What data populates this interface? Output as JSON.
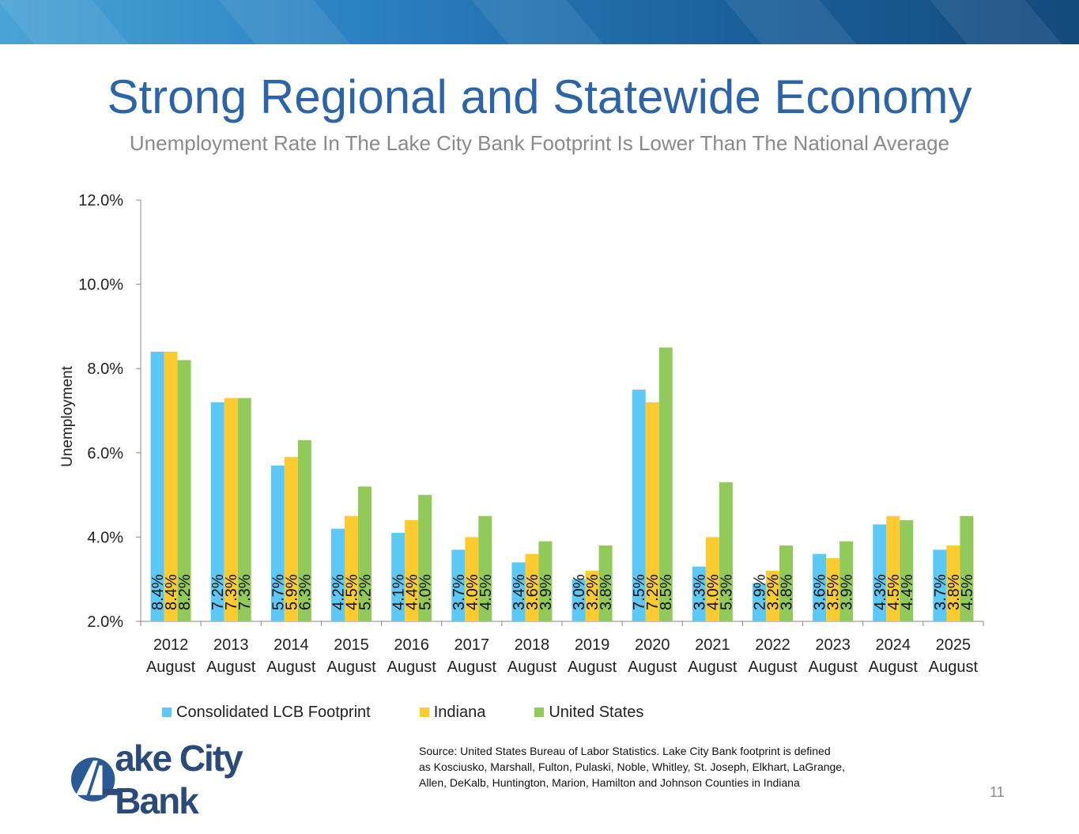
{
  "slide": {
    "title": "Strong Regional and Statewide Economy",
    "subtitle": "Unemployment Rate In The Lake City Bank Footprint Is Lower Than The National Average",
    "source_lines": [
      "Source: United States Bureau of Labor Statistics.  Lake City Bank footprint is defined",
      "as Kosciusko, Marshall, Fulton, Pulaski, Noble, Whitley, St. Joseph, Elkhart, LaGrange,",
      "Allen, DeKalb, Huntington, Marion, Hamilton and Johnson Counties in Indiana"
    ],
    "logo_text": "ake City Bank",
    "page_number": "11"
  },
  "chart_data": {
    "type": "bar",
    "title": "",
    "xlabel": "",
    "ylabel": "Unemployment",
    "ylim": [
      2.0,
      12.0
    ],
    "yticks": [
      "2.0%",
      "4.0%",
      "6.0%",
      "8.0%",
      "10.0%",
      "12.0%"
    ],
    "ytick_values": [
      2,
      4,
      6,
      8,
      10,
      12
    ],
    "categories": [
      "2012",
      "2013",
      "2014",
      "2015",
      "2016",
      "2017",
      "2018",
      "2019",
      "2020",
      "2021",
      "2022",
      "2023",
      "2024",
      "2025"
    ],
    "category_sublabel": "August",
    "legend_position": "bottom",
    "series": [
      {
        "name": "Consolidated LCB Footprint",
        "color": "#5bc8f5",
        "values": [
          8.4,
          7.2,
          5.7,
          4.2,
          4.1,
          3.7,
          3.4,
          3.0,
          7.5,
          3.3,
          2.9,
          3.6,
          4.3,
          3.7
        ],
        "labels": [
          "8.4%",
          "7.2%",
          "5.7%",
          "4.2%",
          "4.1%",
          "3.7%",
          "3.4%",
          "3.0%",
          "7.5%",
          "3.3%",
          "2.9%",
          "3.6%",
          "4.3%",
          "3.7%"
        ]
      },
      {
        "name": "Indiana",
        "color": "#fdcb2f",
        "values": [
          8.4,
          7.3,
          5.9,
          4.5,
          4.4,
          4.0,
          3.6,
          3.2,
          7.2,
          4.0,
          3.2,
          3.5,
          4.5,
          3.8
        ],
        "labels": [
          "8.4%",
          "7.3%",
          "5.9%",
          "4.5%",
          "4.4%",
          "4.0%",
          "3.6%",
          "3.2%",
          "7.2%",
          "4.0%",
          "3.2%",
          "3.5%",
          "4.5%",
          "3.8%"
        ]
      },
      {
        "name": "United States",
        "color": "#92c95b",
        "values": [
          8.2,
          7.3,
          6.3,
          5.2,
          5.0,
          4.5,
          3.9,
          3.8,
          8.5,
          5.3,
          3.8,
          3.9,
          4.4,
          4.5
        ],
        "labels": [
          "8.2%",
          "7.3%",
          "6.3%",
          "5.2%",
          "5.0%",
          "4.5%",
          "3.9%",
          "3.8%",
          "8.5%",
          "5.3%",
          "3.8%",
          "3.9%",
          "4.4%",
          "4.5%"
        ]
      }
    ]
  }
}
